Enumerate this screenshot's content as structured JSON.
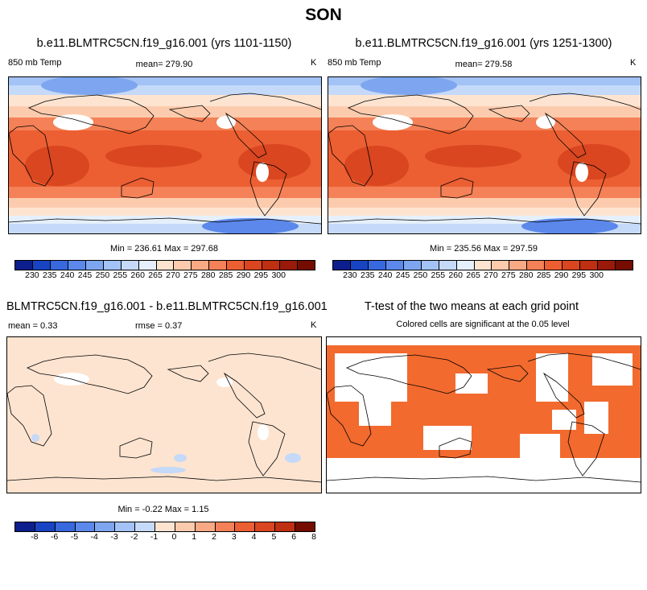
{
  "figure": {
    "title": "SON"
  },
  "colors": {
    "abs_scale": [
      "#0d1f8c",
      "#1844c4",
      "#3868de",
      "#5b88ea",
      "#7ea6f0",
      "#a3c2f5",
      "#c5d9f9",
      "#e6f0fc",
      "#fde4d0",
      "#fccbad",
      "#f9a983",
      "#f48157",
      "#ec5f32",
      "#d94620",
      "#bf2f11",
      "#9a1a0a",
      "#740c00"
    ],
    "diff_scale": [
      "#0d1f8c",
      "#1844c4",
      "#3868de",
      "#5b88ea",
      "#7ea6f0",
      "#a3c2f5",
      "#c5d9f9",
      "#fde4d0",
      "#fccbad",
      "#f9a983",
      "#f48157",
      "#ec5f32",
      "#d94620",
      "#bf2f11",
      "#740c00"
    ],
    "significant": "#f26a2e"
  },
  "panels": {
    "case1": {
      "title": "b.e11.BLMTRC5CN.f19_g16.001 (yrs 1101-1150)",
      "left": "850 mb Temp",
      "center": "mean= 279.90",
      "units": "K",
      "minmax": "Min = 236.61 Max = 297.68",
      "ticks": [
        "230",
        "235",
        "240",
        "245",
        "250",
        "255",
        "260",
        "265",
        "270",
        "275",
        "280",
        "285",
        "290",
        "295",
        "300"
      ]
    },
    "case2": {
      "title": "b.e11.BLMTRC5CN.f19_g16.001 (yrs 1251-1300)",
      "left": "850 mb Temp",
      "center": "mean= 279.58",
      "units": "K",
      "minmax": "Min = 235.56 Max = 297.59",
      "ticks": [
        "230",
        "235",
        "240",
        "245",
        "250",
        "255",
        "260",
        "265",
        "270",
        "275",
        "280",
        "285",
        "290",
        "295",
        "300"
      ]
    },
    "diff": {
      "title": "BLMTRC5CN.f19_g16.001 - b.e11.BLMTRC5CN.f19_g16.001",
      "mean": "mean =   0.33",
      "rmse": "rmse =   0.37",
      "units": "K",
      "minmax": "Min = -0.22 Max =   1.15",
      "ticks": [
        "-8",
        "-6",
        "-5",
        "-4",
        "-3",
        "-2",
        "-1",
        "0",
        "1",
        "2",
        "3",
        "4",
        "5",
        "6",
        "8"
      ]
    },
    "ttest": {
      "title": "T-test of the two means at each grid point",
      "subtitle": "Colored cells are significant at the 0.05 level"
    }
  },
  "chart_data": [
    {
      "type": "heatmap",
      "name": "850 mb Temp (yrs 1101-1150)",
      "units": "K",
      "mean": 279.9,
      "min": 236.61,
      "max": 297.68,
      "levels": [
        230,
        235,
        240,
        245,
        250,
        255,
        260,
        265,
        270,
        275,
        280,
        285,
        290,
        295,
        300
      ]
    },
    {
      "type": "heatmap",
      "name": "850 mb Temp (yrs 1251-1300)",
      "units": "K",
      "mean": 279.58,
      "min": 235.56,
      "max": 297.59,
      "levels": [
        230,
        235,
        240,
        245,
        250,
        255,
        260,
        265,
        270,
        275,
        280,
        285,
        290,
        295,
        300
      ]
    },
    {
      "type": "heatmap",
      "name": "Difference",
      "units": "K",
      "mean": 0.33,
      "rmse": 0.37,
      "min": -0.22,
      "max": 1.15,
      "levels": [
        -8,
        -6,
        -5,
        -4,
        -3,
        -2,
        -1,
        0,
        1,
        2,
        3,
        4,
        5,
        6,
        8
      ]
    },
    {
      "type": "heatmap",
      "name": "T-test significance",
      "significance_level": 0.05
    }
  ]
}
